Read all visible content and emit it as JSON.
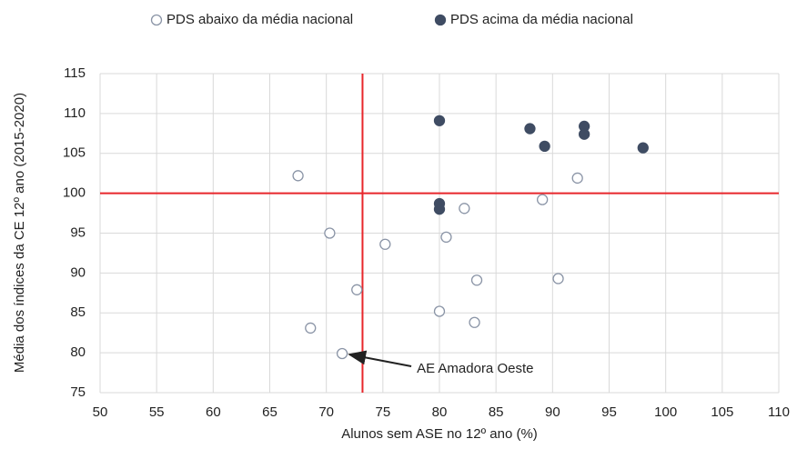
{
  "chart_data": {
    "type": "scatter",
    "x_label": "Alunos sem ASE no 12º ano (%)",
    "y_label": "Média dos índices da CE 12º ano (2015-2020)",
    "series": [
      {
        "name": "PDS abaixo da média nacional",
        "color": "#ffffff",
        "stroke": "#8a94a6",
        "x": [
          67.5,
          92.2,
          89.1,
          82.2,
          70.3,
          75.2,
          80.6,
          83.3,
          90.5,
          72.7,
          80.0,
          83.1,
          68.6,
          71.4
        ],
        "y": [
          102.2,
          101.9,
          99.2,
          98.1,
          95.0,
          93.6,
          94.5,
          89.1,
          89.3,
          87.9,
          85.2,
          83.8,
          83.1,
          79.9
        ]
      },
      {
        "name": "PDS acima da média nacional",
        "color": "#3f4c63",
        "stroke": "#3f4c63",
        "x": [
          80.0,
          88.0,
          92.8,
          92.8,
          89.3,
          98.0,
          80.0,
          80.0
        ],
        "y": [
          109.1,
          108.1,
          108.4,
          107.4,
          105.9,
          105.7,
          98.7,
          98.0
        ]
      }
    ],
    "reference_lines": {
      "x": 73.2,
      "y": 100,
      "color": "#e8262b"
    },
    "annotations": [
      {
        "text": "AE Amadora Oeste",
        "x": 71.4,
        "y": 79.9
      }
    ],
    "xlim": [
      50,
      110
    ],
    "xticks": [
      50,
      55,
      60,
      65,
      70,
      75,
      80,
      85,
      90,
      95,
      100,
      105,
      110
    ],
    "ylim": [
      75,
      115
    ],
    "yticks": [
      75,
      80,
      85,
      90,
      95,
      100,
      105,
      110,
      115
    ],
    "grid": true
  }
}
